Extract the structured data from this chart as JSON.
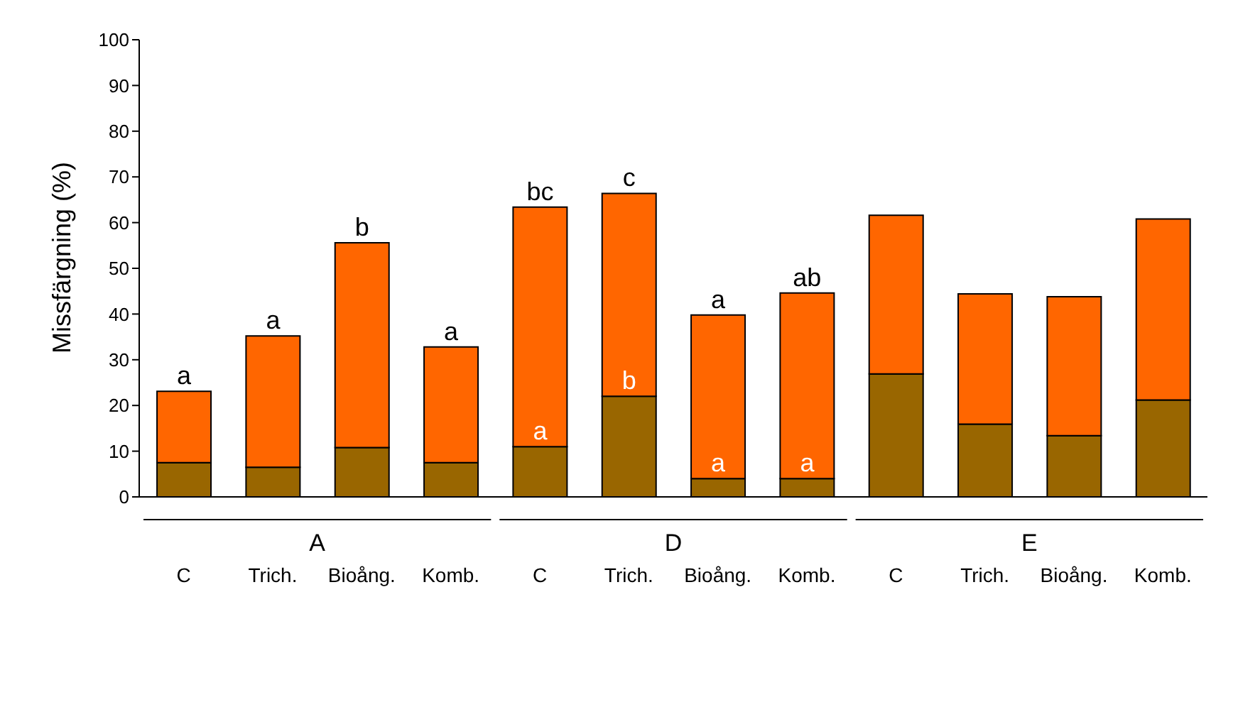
{
  "chart_data": {
    "type": "bar",
    "stacked": true,
    "ylabel": "Missfärgning (%)",
    "categories": [
      "C",
      "Trich.",
      "Bioång.",
      "Komb.",
      "C",
      "Trich.",
      "Bioång.",
      "Komb.",
      "C",
      "Trich.",
      "Bioång.",
      "Komb."
    ],
    "annotations": [
      "A",
      "D",
      "E"
    ],
    "series": [
      {
        "color": "#996600",
        "values": [
          7.5,
          6.5,
          10.8,
          7.5,
          11,
          22,
          4,
          4,
          26.9,
          15.9,
          13.4,
          21.2
        ],
        "value_labels": [
          null,
          null,
          null,
          null,
          "a",
          "b",
          "a",
          "a",
          null,
          null,
          null,
          null
        ]
      },
      {
        "color": "#ff6600",
        "values": [
          15.6,
          28.7,
          44.8,
          25.3,
          52.4,
          44.4,
          35.8,
          40.6,
          34.7,
          28.5,
          30.4,
          39.6
        ],
        "value_labels": [
          "a",
          "a",
          "b",
          "a",
          "bc",
          "c",
          "a",
          "ab",
          null,
          null,
          null,
          null
        ]
      }
    ],
    "ylim": [
      0,
      100
    ],
    "yticks": [
      0,
      10,
      20,
      30,
      40,
      50,
      60,
      70,
      80,
      90,
      100
    ],
    "grid": false,
    "legend": false
  }
}
